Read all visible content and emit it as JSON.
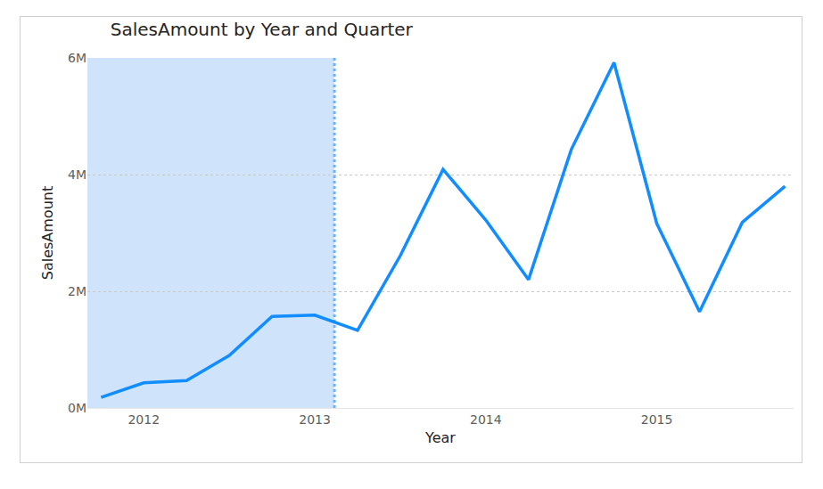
{
  "chart_data": {
    "type": "line",
    "title": "SalesAmount by Year and Quarter",
    "x_label": "Year",
    "y_label": "SalesAmount",
    "x": [
      2011.75,
      2012,
      2012.25,
      2012.5,
      2012.75,
      2013,
      2013.25,
      2013.5,
      2013.75,
      2014,
      2014.25,
      2014.5,
      2014.75,
      2015,
      2015.25,
      2015.5,
      2015.75
    ],
    "values": [
      180000,
      430000,
      470000,
      900000,
      1570000,
      1590000,
      1330000,
      2610000,
      4090000,
      3220000,
      2200000,
      4430000,
      5920000,
      3160000,
      1650000,
      3180000,
      3800000
    ],
    "color": "#118dff",
    "xlim": [
      2011.67,
      2015.8
    ],
    "xticks": [
      2012,
      2013,
      2014,
      2015
    ],
    "ylim": [
      0,
      6000000
    ],
    "yticks": [
      {
        "value": 0,
        "label": "0M"
      },
      {
        "value": 2000000,
        "label": "2M"
      },
      {
        "value": 4000000,
        "label": "4M"
      },
      {
        "value": 6000000,
        "label": "6M"
      }
    ],
    "grid": true,
    "shaded_until": 2013.115
  }
}
